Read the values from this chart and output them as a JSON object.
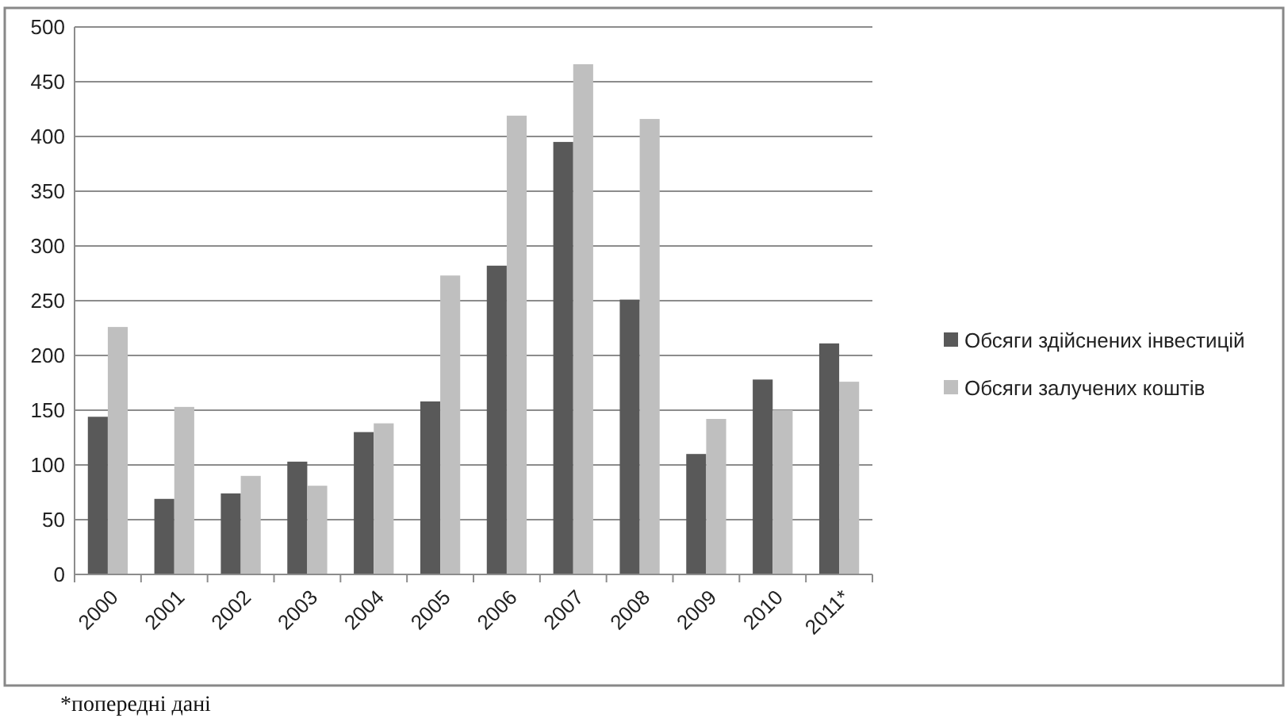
{
  "chart_data": {
    "type": "bar",
    "categories": [
      "2000",
      "2001",
      "2002",
      "2003",
      "2004",
      "2005",
      "2006",
      "2007",
      "2008",
      "2009",
      "2010",
      "2011*"
    ],
    "series": [
      {
        "name": "Обсяги здійснених інвестицій",
        "color": "#595959",
        "values": [
          144,
          69,
          74,
          103,
          130,
          158,
          282,
          395,
          251,
          110,
          178,
          211
        ]
      },
      {
        "name": "Обсяги залучених коштів",
        "color": "#bfbfbf",
        "values": [
          226,
          153,
          90,
          81,
          138,
          273,
          419,
          466,
          416,
          142,
          150,
          176
        ]
      }
    ],
    "ylim": [
      0,
      500
    ],
    "yticks": [
      0,
      50,
      100,
      150,
      200,
      250,
      300,
      350,
      400,
      450,
      500
    ],
    "grid": "y",
    "legend": "right",
    "annotations": [
      "*попередні дані"
    ]
  }
}
